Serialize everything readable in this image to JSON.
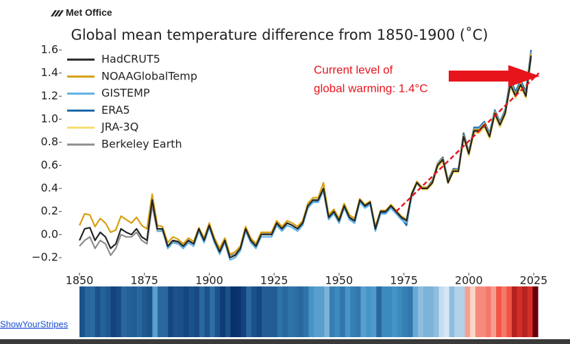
{
  "brand": "Met Office",
  "link": "ShowYourStripes",
  "chart_data": {
    "type": "line",
    "title": "Global mean temperature difference from 1850-1900 (˚C)",
    "annotation": [
      "Current level of",
      "global warming: 1.4°C"
    ],
    "x": [
      1850,
      1852,
      1854,
      1856,
      1858,
      1860,
      1862,
      1864,
      1866,
      1868,
      1870,
      1872,
      1874,
      1876,
      1878,
      1880,
      1882,
      1884,
      1886,
      1888,
      1890,
      1892,
      1894,
      1896,
      1898,
      1900,
      1902,
      1904,
      1906,
      1908,
      1910,
      1912,
      1914,
      1916,
      1918,
      1920,
      1922,
      1924,
      1926,
      1928,
      1930,
      1932,
      1934,
      1936,
      1938,
      1940,
      1942,
      1944,
      1946,
      1948,
      1950,
      1952,
      1954,
      1956,
      1958,
      1960,
      1962,
      1964,
      1966,
      1968,
      1970,
      1972,
      1974,
      1976,
      1978,
      1980,
      1982,
      1984,
      1986,
      1988,
      1990,
      1992,
      1994,
      1996,
      1998,
      2000,
      2002,
      2004,
      2006,
      2008,
      2010,
      2012,
      2014,
      2016,
      2018,
      2020,
      2022,
      2024
    ],
    "series": [
      {
        "name": "HadCRUT5",
        "color": "#232323",
        "values": [
          -0.05,
          0.05,
          0.06,
          -0.05,
          0.02,
          -0.02,
          -0.12,
          -0.08,
          0.05,
          0.02,
          0.0,
          0.05,
          -0.02,
          -0.05,
          0.3,
          0.05,
          0.05,
          -0.1,
          -0.05,
          -0.06,
          -0.1,
          -0.05,
          -0.08,
          0.05,
          -0.05,
          0.08,
          -0.05,
          -0.15,
          -0.05,
          -0.2,
          -0.18,
          -0.12,
          0.05,
          -0.05,
          -0.1,
          0.0,
          0.0,
          0.0,
          0.1,
          0.05,
          0.1,
          0.08,
          0.05,
          0.1,
          0.25,
          0.3,
          0.3,
          0.4,
          0.15,
          0.2,
          0.12,
          0.25,
          0.15,
          0.12,
          0.3,
          0.25,
          0.28,
          0.05,
          0.2,
          0.2,
          0.25,
          0.2,
          0.15,
          0.12,
          0.35,
          0.45,
          0.4,
          0.4,
          0.45,
          0.6,
          0.65,
          0.45,
          0.55,
          0.55,
          0.85,
          0.7,
          0.9,
          0.9,
          0.95,
          0.85,
          1.05,
          0.95,
          1.05,
          1.3,
          1.2,
          1.3,
          1.2,
          1.55
        ]
      },
      {
        "name": "NOAAGlobalTemp",
        "color": "#d69e0c",
        "values": [
          0.08,
          0.18,
          0.17,
          0.07,
          0.14,
          0.1,
          0.02,
          0.04,
          0.16,
          0.13,
          0.1,
          0.15,
          0.08,
          0.05,
          0.35,
          0.08,
          0.07,
          -0.07,
          -0.02,
          -0.04,
          -0.08,
          -0.03,
          -0.06,
          0.06,
          -0.03,
          0.1,
          -0.03,
          -0.12,
          -0.03,
          -0.17,
          -0.15,
          -0.1,
          0.07,
          -0.03,
          -0.08,
          0.02,
          0.02,
          0.02,
          0.12,
          0.07,
          0.12,
          0.1,
          0.07,
          0.12,
          0.27,
          0.32,
          0.32,
          0.45,
          0.17,
          0.22,
          0.14,
          0.27,
          0.17,
          0.14,
          0.31,
          0.26,
          0.29,
          0.07,
          0.21,
          0.21,
          0.26,
          0.21,
          0.16,
          0.13,
          0.36,
          0.46,
          0.41,
          0.41,
          0.46,
          0.61,
          0.66,
          0.46,
          0.56,
          0.56,
          0.86,
          0.71,
          0.91,
          0.91,
          0.96,
          0.86,
          1.06,
          0.96,
          1.06,
          1.31,
          1.21,
          1.31,
          1.21,
          1.57
        ]
      },
      {
        "name": "GISTEMP",
        "color": "#5bb0e3",
        "values": [
          null,
          null,
          null,
          null,
          null,
          null,
          null,
          null,
          null,
          null,
          null,
          null,
          null,
          null,
          null,
          0.03,
          0.04,
          -0.12,
          -0.07,
          -0.08,
          -0.12,
          -0.07,
          -0.1,
          0.03,
          -0.07,
          0.06,
          -0.07,
          -0.17,
          -0.07,
          -0.22,
          -0.2,
          -0.14,
          0.03,
          -0.07,
          -0.12,
          -0.02,
          -0.02,
          -0.02,
          0.08,
          0.03,
          0.08,
          0.06,
          0.03,
          0.08,
          0.23,
          0.28,
          0.28,
          0.38,
          0.13,
          0.18,
          0.1,
          0.23,
          0.13,
          0.1,
          0.28,
          0.23,
          0.26,
          0.03,
          0.18,
          0.18,
          0.23,
          0.18,
          0.13,
          0.1,
          0.33,
          0.45,
          0.4,
          0.4,
          0.46,
          0.62,
          0.66,
          0.46,
          0.56,
          0.57,
          0.86,
          0.72,
          0.92,
          0.92,
          0.97,
          0.87,
          1.07,
          0.97,
          1.07,
          1.33,
          1.22,
          1.32,
          1.22,
          1.58
        ]
      },
      {
        "name": "ERA5",
        "color": "#1766a6",
        "values": [
          null,
          null,
          null,
          null,
          null,
          null,
          null,
          null,
          null,
          null,
          null,
          null,
          null,
          null,
          null,
          null,
          null,
          null,
          null,
          null,
          null,
          null,
          null,
          null,
          null,
          null,
          null,
          null,
          null,
          null,
          null,
          null,
          null,
          null,
          null,
          null,
          null,
          null,
          null,
          null,
          null,
          null,
          null,
          null,
          null,
          0.28,
          0.29,
          0.38,
          0.14,
          0.19,
          0.11,
          0.24,
          0.14,
          0.1,
          0.29,
          0.24,
          0.27,
          0.04,
          0.19,
          0.19,
          0.24,
          0.19,
          0.14,
          0.08,
          0.34,
          0.46,
          0.41,
          0.41,
          0.47,
          0.62,
          0.67,
          0.47,
          0.57,
          0.57,
          0.88,
          0.72,
          0.93,
          0.93,
          0.98,
          0.88,
          1.08,
          0.98,
          1.08,
          1.35,
          1.24,
          1.34,
          1.24,
          1.6
        ]
      },
      {
        "name": "JRA-3Q",
        "color": "#f7dc6f",
        "values": [
          null,
          null,
          null,
          null,
          null,
          null,
          null,
          null,
          null,
          null,
          null,
          null,
          null,
          null,
          null,
          null,
          null,
          null,
          null,
          null,
          null,
          null,
          null,
          null,
          null,
          null,
          null,
          null,
          null,
          null,
          null,
          null,
          null,
          null,
          null,
          null,
          null,
          null,
          null,
          null,
          null,
          null,
          null,
          null,
          null,
          null,
          null,
          null,
          null,
          0.2,
          0.12,
          0.25,
          0.15,
          0.12,
          0.3,
          0.25,
          0.28,
          0.06,
          0.2,
          0.2,
          0.25,
          0.2,
          0.15,
          0.12,
          0.35,
          0.44,
          0.39,
          0.39,
          0.44,
          0.58,
          0.63,
          0.44,
          0.54,
          0.54,
          0.84,
          0.68,
          0.88,
          0.88,
          0.93,
          0.83,
          1.03,
          0.93,
          1.03,
          1.28,
          1.18,
          1.28,
          1.18,
          1.54
        ]
      },
      {
        "name": "Berkeley Earth",
        "color": "#8c8c8c",
        "values": [
          -0.1,
          -0.05,
          -0.02,
          -0.12,
          -0.05,
          -0.08,
          -0.18,
          -0.12,
          0.0,
          -0.02,
          -0.02,
          0.02,
          -0.05,
          -0.08,
          0.25,
          0.03,
          0.03,
          -0.1,
          -0.06,
          -0.07,
          -0.1,
          -0.06,
          -0.08,
          0.04,
          -0.05,
          0.07,
          -0.05,
          -0.14,
          -0.05,
          -0.18,
          -0.17,
          -0.11,
          0.05,
          -0.04,
          -0.09,
          0.01,
          0.01,
          0.01,
          0.1,
          0.05,
          0.1,
          0.08,
          0.05,
          0.1,
          0.24,
          0.29,
          0.29,
          0.38,
          0.15,
          0.2,
          0.12,
          0.24,
          0.15,
          0.12,
          0.29,
          0.24,
          0.27,
          0.05,
          0.2,
          0.2,
          0.24,
          0.2,
          0.15,
          0.12,
          0.35,
          0.45,
          0.4,
          0.4,
          0.45,
          0.6,
          0.64,
          0.45,
          0.55,
          0.55,
          0.84,
          0.7,
          0.89,
          0.89,
          0.94,
          0.85,
          1.04,
          0.95,
          1.04,
          1.29,
          1.19,
          1.29,
          1.19,
          1.53
        ]
      }
    ],
    "trend_line": {
      "color": "#e8141c",
      "x": [
        1972,
        2027
      ],
      "values": [
        0.2,
        1.4
      ]
    },
    "stripes": true,
    "xlim": [
      1850,
      2025
    ],
    "xticks": [
      1850,
      1875,
      1900,
      1925,
      1950,
      1975,
      2000,
      2025
    ],
    "ylim": [
      -0.2,
      1.6
    ],
    "yticks": [
      {
        "value": -0.2,
        "label": "−0.2"
      },
      {
        "value": 0,
        "label": "0.0"
      },
      0.2,
      0.4,
      0.6,
      0.8,
      {
        "value": 1,
        "label": "1.0"
      },
      1.2,
      1.4,
      1.6
    ],
    "legend": "upper left"
  }
}
